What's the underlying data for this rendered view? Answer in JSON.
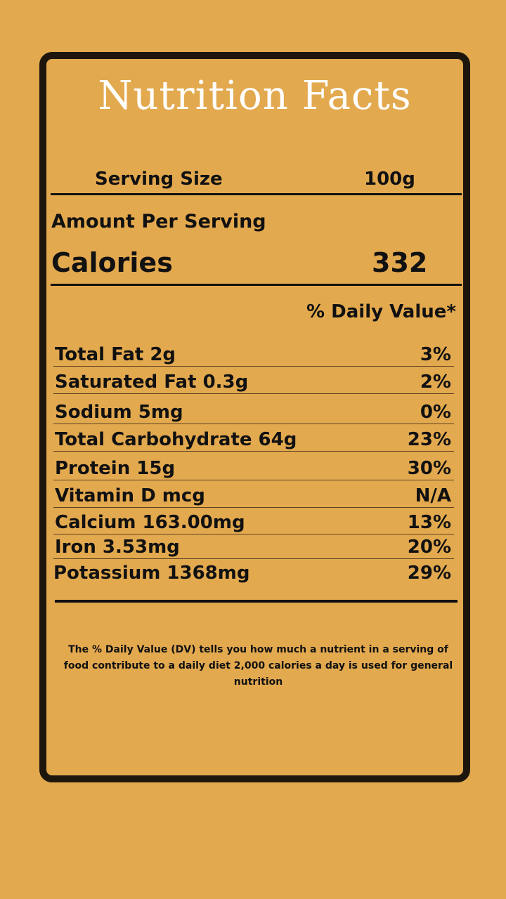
{
  "label": {
    "title": "Nutrition Facts",
    "serving_size_label": "Serving Size",
    "serving_size_value": "100g",
    "amount_per_serving": "Amount Per Serving",
    "calories_label": "Calories",
    "calories_value": "332",
    "daily_value_header": "% Daily Value*",
    "nutrients": [
      {
        "name": "Total Fat 2g",
        "dv": "3%"
      },
      {
        "name": "Saturated Fat 0.3g",
        "dv": "2%"
      },
      {
        "name": "Sodium 5mg",
        "dv": "0%"
      },
      {
        "name": "Total Carbohydrate 64g",
        "dv": "23%"
      },
      {
        "name": "Protein 15g",
        "dv": "30%"
      },
      {
        "name": "Vitamin D mcg",
        "dv": "N/A"
      },
      {
        "name": "Calcium 163.00mg",
        "dv": "13%"
      },
      {
        "name": "Iron 3.53mg",
        "dv": "20%"
      },
      {
        "name": "Potassium 1368mg",
        "dv": "29%"
      }
    ],
    "footnote": "The % Daily Value (DV) tells you how much a nutrient in a serving of food contribute to a daily diet 2,000 calories a day is used for general nutrition"
  },
  "colors": {
    "background": "#e3a94f",
    "border": "#1e160c",
    "title_text": "#ffffff",
    "body_text": "#111111"
  }
}
